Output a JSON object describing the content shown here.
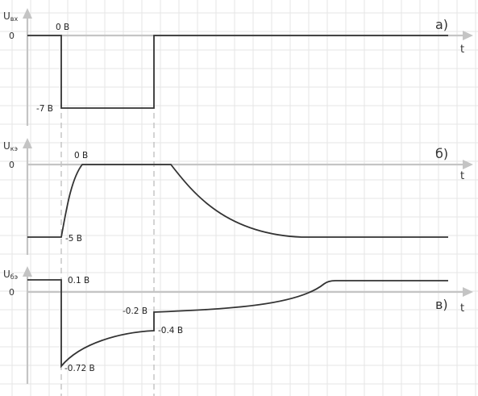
{
  "panels": [
    {
      "id": "a",
      "axis_main": "U",
      "axis_sub": "вх",
      "zero_tick": "0",
      "panel_label": "а)",
      "t_label": "t",
      "annotations": {
        "high": "0 В",
        "low": "-7 В"
      }
    },
    {
      "id": "b",
      "axis_main": "U",
      "axis_sub": "кэ",
      "zero_tick": "0",
      "panel_label": "б)",
      "t_label": "t",
      "annotations": {
        "high": "0 В",
        "low": "-5 В"
      }
    },
    {
      "id": "c",
      "axis_main": "U",
      "axis_sub": "бэ",
      "zero_tick": "0",
      "panel_label": "в)",
      "t_label": "t",
      "annotations": {
        "initial": "0.1 В",
        "min": "-0.72 В",
        "before_jump": "-0.4 В",
        "after_jump": "-0.2 В"
      }
    }
  ],
  "colors": {
    "signal": "#333333",
    "axis": "#c4c4c4",
    "grid": "#e6e6e6",
    "dashed": "#b8b8b8"
  }
}
